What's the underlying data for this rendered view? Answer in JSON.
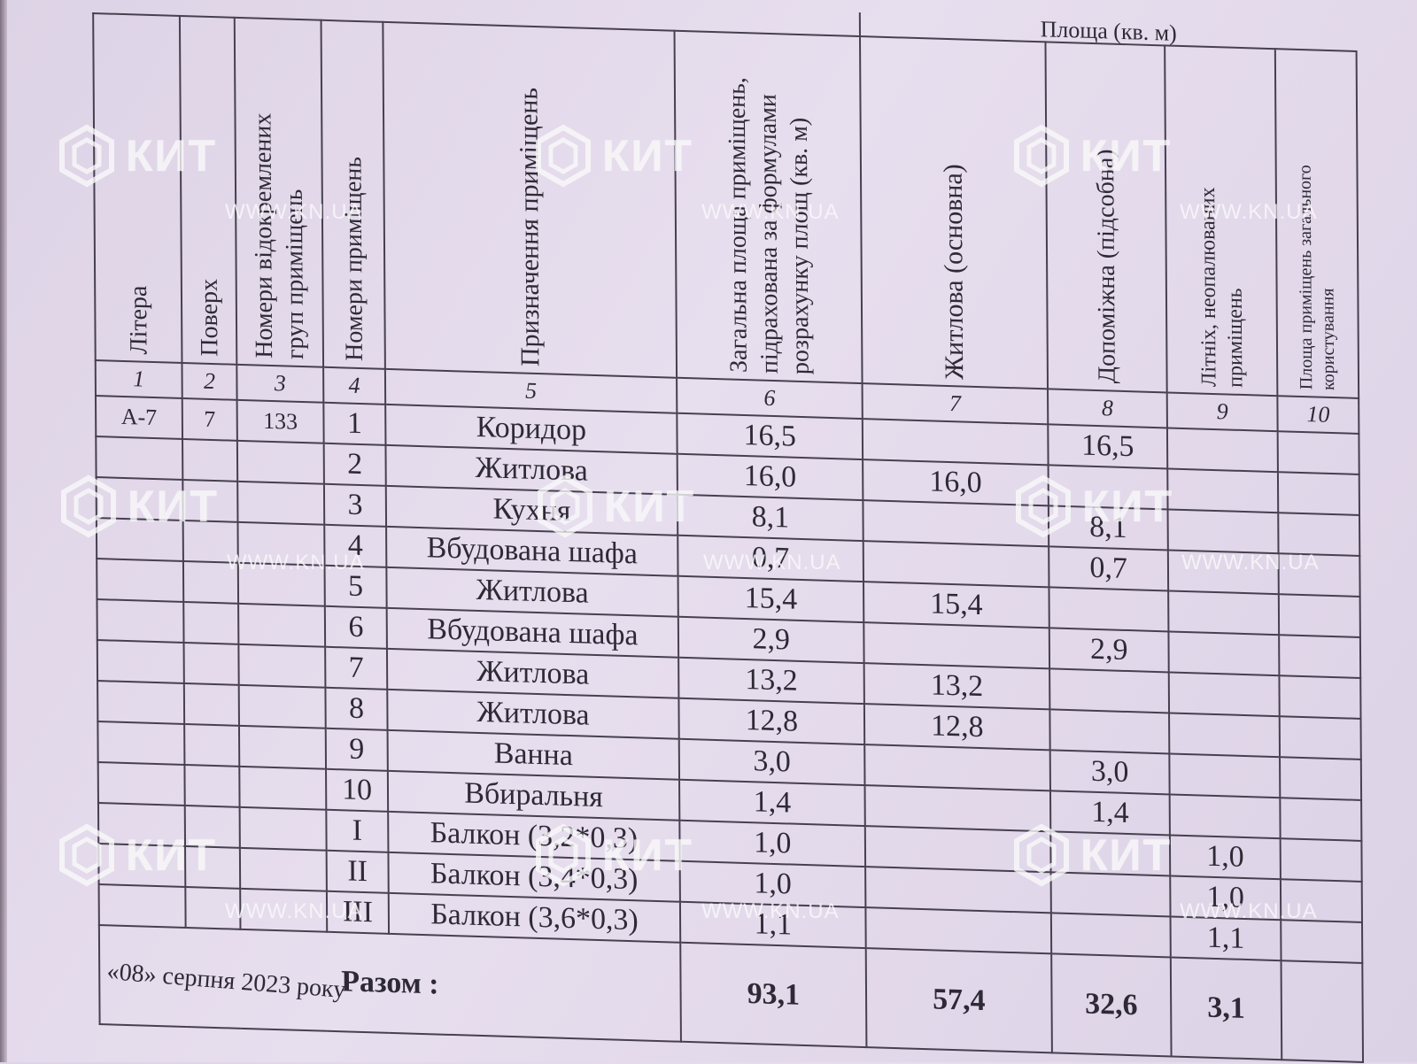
{
  "header": {
    "area_group": "Площа (кв. м)",
    "col1": "Літера",
    "col2": "Поверх",
    "col3": "Номери відокремлених груп приміщень",
    "col4": "Номери приміщень",
    "col5": "Призначення приміщень",
    "col6": "Загальна площа приміщень, підрахована за формулами розрахунку площ (кв. м)",
    "col7": "Житлова (основна)",
    "col8": "Допоміжна (підсобна)",
    "col9": "Літніх, неопалюваних приміщень",
    "col10": "Площа приміщень загального користування"
  },
  "col_numbers": [
    "1",
    "2",
    "3",
    "4",
    "5",
    "6",
    "7",
    "8",
    "9",
    "10"
  ],
  "rows": [
    {
      "litera": "А-7",
      "floor": "7",
      "group": "133",
      "num": "1",
      "name": "Коридор",
      "total": "16,5",
      "living": "",
      "aux": "16,5",
      "summer": ""
    },
    {
      "litera": "",
      "floor": "",
      "group": "",
      "num": "2",
      "name": "Житлова",
      "total": "16,0",
      "living": "16,0",
      "aux": "",
      "summer": ""
    },
    {
      "litera": "",
      "floor": "",
      "group": "",
      "num": "3",
      "name": "Кухня",
      "total": "8,1",
      "living": "",
      "aux": "8,1",
      "summer": ""
    },
    {
      "litera": "",
      "floor": "",
      "group": "",
      "num": "4",
      "name": "Вбудована шафа",
      "total": "0,7",
      "living": "",
      "aux": "0,7",
      "summer": ""
    },
    {
      "litera": "",
      "floor": "",
      "group": "",
      "num": "5",
      "name": "Житлова",
      "total": "15,4",
      "living": "15,4",
      "aux": "",
      "summer": ""
    },
    {
      "litera": "",
      "floor": "",
      "group": "",
      "num": "6",
      "name": "Вбудована шафа",
      "total": "2,9",
      "living": "",
      "aux": "2,9",
      "summer": ""
    },
    {
      "litera": "",
      "floor": "",
      "group": "",
      "num": "7",
      "name": "Житлова",
      "total": "13,2",
      "living": "13,2",
      "aux": "",
      "summer": ""
    },
    {
      "litera": "",
      "floor": "",
      "group": "",
      "num": "8",
      "name": "Житлова",
      "total": "12,8",
      "living": "12,8",
      "aux": "",
      "summer": ""
    },
    {
      "litera": "",
      "floor": "",
      "group": "",
      "num": "9",
      "name": "Ванна",
      "total": "3,0",
      "living": "",
      "aux": "3,0",
      "summer": ""
    },
    {
      "litera": "",
      "floor": "",
      "group": "",
      "num": "10",
      "name": "Вбиральня",
      "total": "1,4",
      "living": "",
      "aux": "1,4",
      "summer": ""
    },
    {
      "litera": "",
      "floor": "",
      "group": "",
      "num": "I",
      "name": "Балкон (3,2*0,3)",
      "total": "1,0",
      "living": "",
      "aux": "",
      "summer": "1,0"
    },
    {
      "litera": "",
      "floor": "",
      "group": "",
      "num": "II",
      "name": "Балкон (3,4*0,3)",
      "total": "1,0",
      "living": "",
      "aux": "",
      "summer": "1,0"
    },
    {
      "litera": "",
      "floor": "",
      "group": "",
      "num": "III",
      "name": "Балкон (3,6*0,3)",
      "total": "1,1",
      "living": "",
      "aux": "",
      "summer": "1,1"
    }
  ],
  "totals": {
    "label": "Разом :",
    "total": "93,1",
    "living": "57,4",
    "aux": "32,6",
    "summer": "3,1"
  },
  "date": "«08» серпня 2023 року",
  "watermark": {
    "word": "КИТ",
    "url": "WWW.KN.UA",
    "icon": "kit-hexagon-logo-icon",
    "color": "#fafafa"
  }
}
